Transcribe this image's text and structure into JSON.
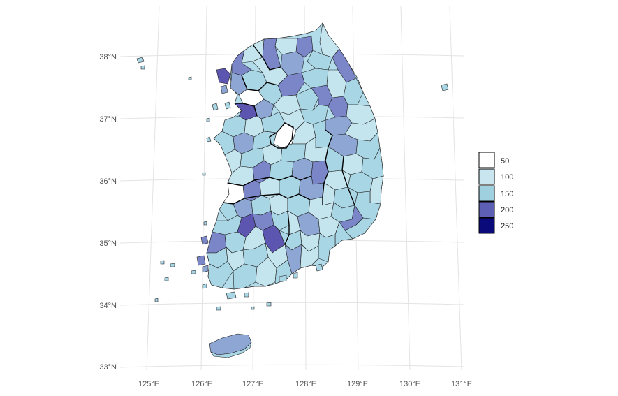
{
  "map": {
    "lat_labels": [
      "38°N",
      "37°N",
      "36°N",
      "35°N",
      "34°N",
      "33°N"
    ],
    "lon_labels": [
      "125°E",
      "126°E",
      "127°E",
      "128°E",
      "129°E",
      "130°E",
      "131°E"
    ],
    "lat_values": [
      38,
      37,
      36,
      35,
      34,
      33
    ],
    "lon_values": [
      125,
      126,
      127,
      128,
      129,
      130,
      131
    ],
    "grid": true
  },
  "legend": {
    "placement": "right",
    "items": [
      {
        "label": "50",
        "color": "#ffffff"
      },
      {
        "label": "100",
        "color": "#c9e6f0"
      },
      {
        "label": "150",
        "color": "#9fd0e0"
      },
      {
        "label": "200",
        "color": "#5d5fb4"
      },
      {
        "label": "250",
        "color": "#0a0a7a"
      }
    ]
  },
  "colors": {
    "very_light": "#d6edf4",
    "light": "#c2e3ee",
    "mid": "#a9d6e5",
    "blue_gray": "#8da6d3",
    "periwinkle": "#7b86c9",
    "purple": "#5c56b0",
    "white": "#ffffff"
  }
}
